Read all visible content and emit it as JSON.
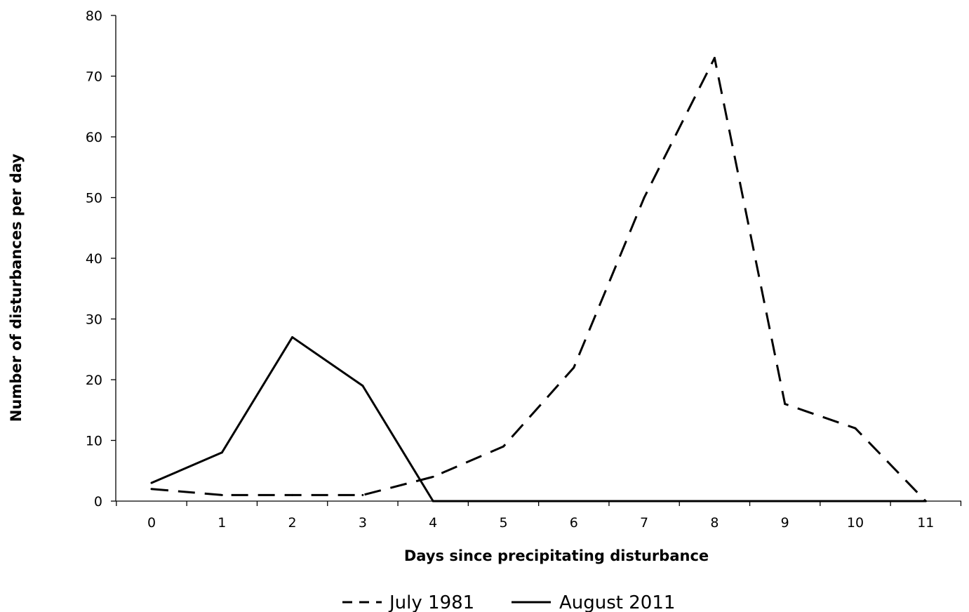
{
  "chart_data": {
    "type": "line",
    "title": "",
    "xlabel": "Days since precipitating disturbance",
    "ylabel": "Number of disturbances per day",
    "categories": [
      "0",
      "1",
      "2",
      "3",
      "4",
      "5",
      "6",
      "7",
      "8",
      "9",
      "10",
      "11"
    ],
    "x": [
      0,
      1,
      2,
      3,
      4,
      5,
      6,
      7,
      8,
      9,
      10,
      11
    ],
    "ylim": [
      0,
      80
    ],
    "yticks": [
      0,
      10,
      20,
      30,
      40,
      50,
      60,
      70,
      80
    ],
    "yticks_labels": [
      "0",
      "10",
      "20",
      "30",
      "40",
      "50",
      "60",
      "70",
      "80"
    ],
    "grid": false,
    "legend_position": "bottom",
    "series": [
      {
        "name": "July 1981",
        "style": "dashed",
        "color": "#000000",
        "values": [
          2,
          1,
          1,
          1,
          4,
          9,
          22,
          50,
          73,
          16,
          12,
          0
        ]
      },
      {
        "name": "August 2011",
        "style": "solid",
        "color": "#000000",
        "values": [
          3,
          8,
          27,
          19,
          0,
          0,
          0,
          0,
          0,
          0,
          0,
          0
        ]
      }
    ]
  }
}
